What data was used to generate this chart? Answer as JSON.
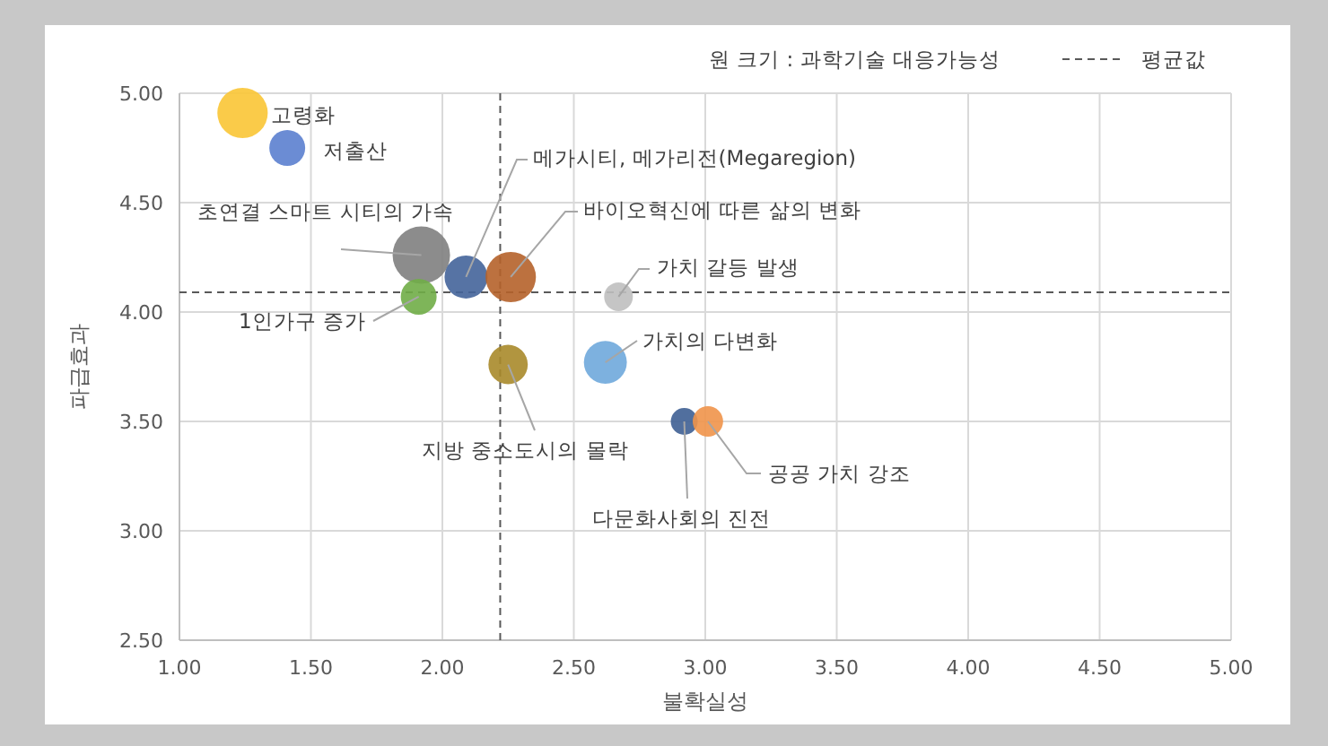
{
  "chart_data": {
    "type": "bubble",
    "xlabel": "불확실성",
    "ylabel": "파급효과",
    "annotations": [
      "원 크기 : 과학기술 대응가능성"
    ],
    "xlim": [
      1,
      5
    ],
    "ylim": [
      2.5,
      5
    ],
    "xticks": [
      {
        "value": 1,
        "label": "1.00"
      },
      {
        "value": 1.5,
        "label": "1.50"
      },
      {
        "value": 2,
        "label": "2.00"
      },
      {
        "value": 2.5,
        "label": "2.50"
      },
      {
        "value": 3,
        "label": "3.00"
      },
      {
        "value": 3.5,
        "label": "3.50"
      },
      {
        "value": 4,
        "label": "4.00"
      },
      {
        "value": 4.5,
        "label": "4.50"
      },
      {
        "value": 5,
        "label": "5.00"
      }
    ],
    "yticks": [
      {
        "value": 2.5,
        "label": "2.50"
      },
      {
        "value": 3,
        "label": "3.00"
      },
      {
        "value": 3.5,
        "label": "3.50"
      },
      {
        "value": 4,
        "label": "4.00"
      },
      {
        "value": 4.5,
        "label": "4.50"
      },
      {
        "value": 5,
        "label": "5.00"
      }
    ],
    "grid": true,
    "legend": "top",
    "ref_lines": [
      {
        "axis": "x",
        "value": 2.22,
        "label": "평균값",
        "color": "#595959",
        "line_style": "dashed"
      },
      {
        "axis": "y",
        "value": 4.09,
        "color": "#595959",
        "line_style": "dashed"
      }
    ],
    "series": [
      {
        "name": "고령화",
        "color": "#f9c535",
        "x": [
          1.24
        ],
        "values": [
          4.91
        ],
        "sizes": [
          0.77
        ]
      },
      {
        "name": "저출산",
        "color": "#5b7fcf",
        "x": [
          1.41
        ],
        "values": [
          4.75
        ],
        "sizes": [
          0.39
        ]
      },
      {
        "name": "초연결 스마트 시티의 가속",
        "color": "#7f7f7f",
        "x": [
          1.92
        ],
        "values": [
          4.26
        ],
        "sizes": [
          1
        ]
      },
      {
        "name": "메가시티, 메가리전(Megaregion)",
        "color": "#44649a",
        "x": [
          2.09
        ],
        "values": [
          4.16
        ],
        "sizes": [
          0.56
        ]
      },
      {
        "name": "바이오혁신에 따른 삶의 변화",
        "color": "#b5622a",
        "x": [
          2.26
        ],
        "values": [
          4.16
        ],
        "sizes": [
          0.77
        ]
      },
      {
        "name": "1인가구 증가",
        "color": "#70ad47",
        "x": [
          1.91
        ],
        "values": [
          4.07
        ],
        "sizes": [
          0.39
        ]
      },
      {
        "name": "가치 갈등 발생",
        "color": "#bfbfbf",
        "x": [
          2.67
        ],
        "values": [
          4.07
        ],
        "sizes": [
          0.25
        ]
      },
      {
        "name": "가치의 다변화",
        "color": "#6fa8dc",
        "x": [
          2.62
        ],
        "values": [
          3.77
        ],
        "sizes": [
          0.56
        ]
      },
      {
        "name": "지방 중소도시의 몰락",
        "color": "#a8892a",
        "x": [
          2.25
        ],
        "values": [
          3.76
        ],
        "sizes": [
          0.47
        ]
      },
      {
        "name": "다문화사회의 진전",
        "color": "#3e5f94",
        "x": [
          2.92
        ],
        "values": [
          3.5
        ],
        "sizes": [
          0.22
        ]
      },
      {
        "name": "공공 가치 강조",
        "color": "#f0944a",
        "x": [
          3.01
        ],
        "values": [
          3.5
        ],
        "sizes": [
          0.28
        ]
      }
    ]
  }
}
